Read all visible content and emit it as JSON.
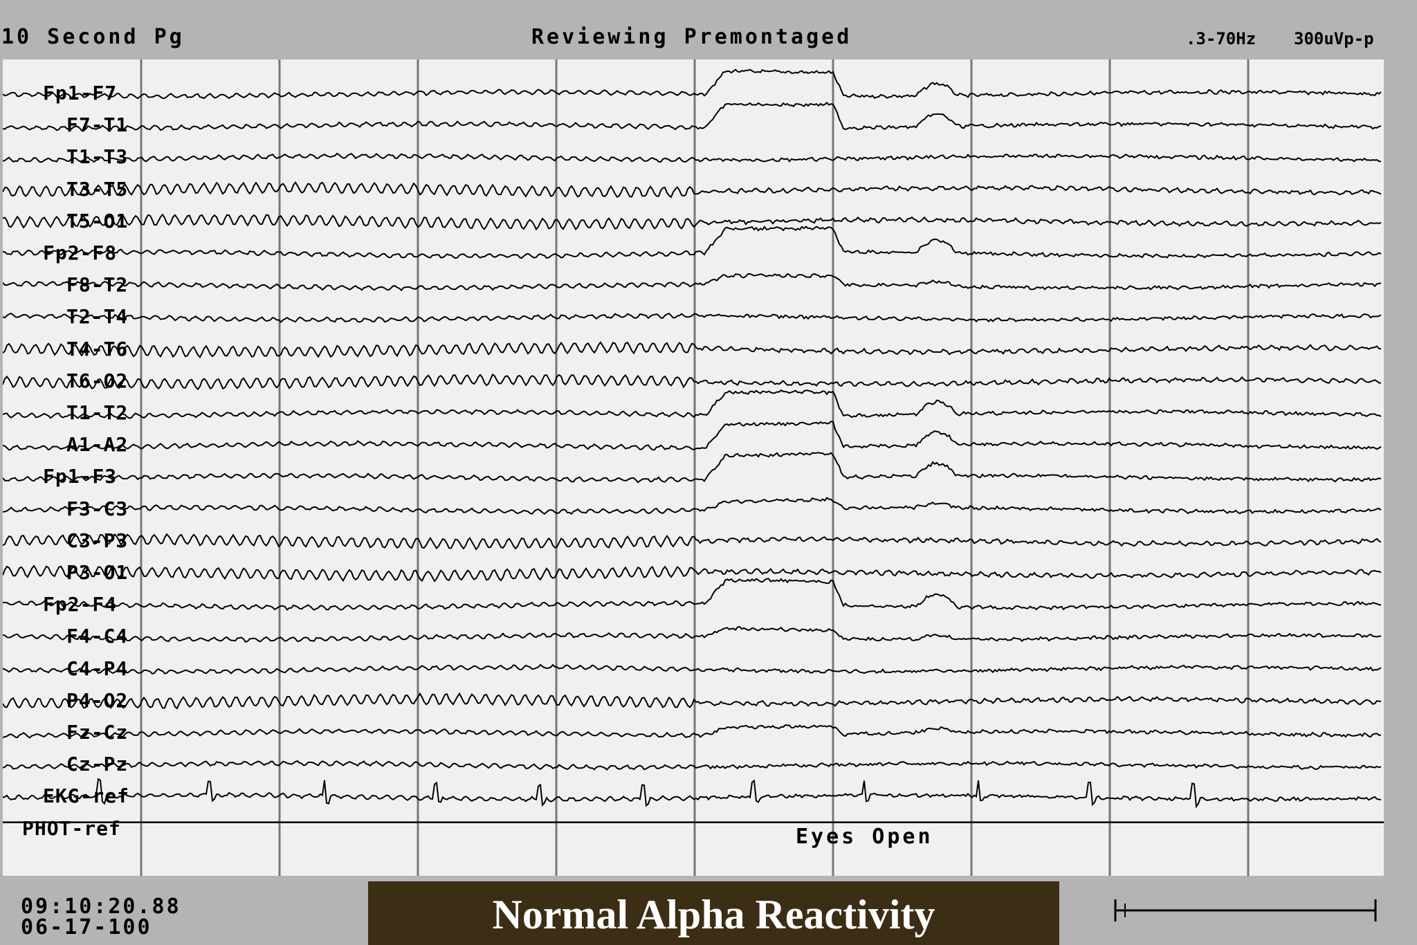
{
  "header": {
    "page_duration": "10 Second Pg",
    "mode": "Reviewing Premontaged",
    "filter": ".3-70Hz",
    "sensitivity": "300uVp-p"
  },
  "channels": [
    "Fp1-F7",
    "F7-T1",
    "T1-T3",
    "T3-T5",
    "T5-O1",
    "Fp2-F8",
    "F8-T2",
    "T2-T4",
    "T4-T6",
    "T6-O2",
    "T1-T2",
    "A1-A2",
    "Fp1-F3",
    "F3-C3",
    "C3-P3",
    "P3-O1",
    "Fp2-F4",
    "F4-C4",
    "C4-P4",
    "P4-O2",
    "Fz-Cz",
    "Cz-Pz",
    "EKG-ref",
    "PHOT-ref"
  ],
  "event_annotation": "Eyes Open",
  "timestamp": {
    "time": "09:10:20.88",
    "date": "06-17-100"
  },
  "caption": "Normal Alpha Reactivity",
  "colors": {
    "background": "#b4b4b4",
    "panel": "#f0f0f0",
    "trace": "#000000",
    "gridline": "#777777",
    "caption_bg": "#3b2e15",
    "caption_text": "#ffffff"
  }
}
